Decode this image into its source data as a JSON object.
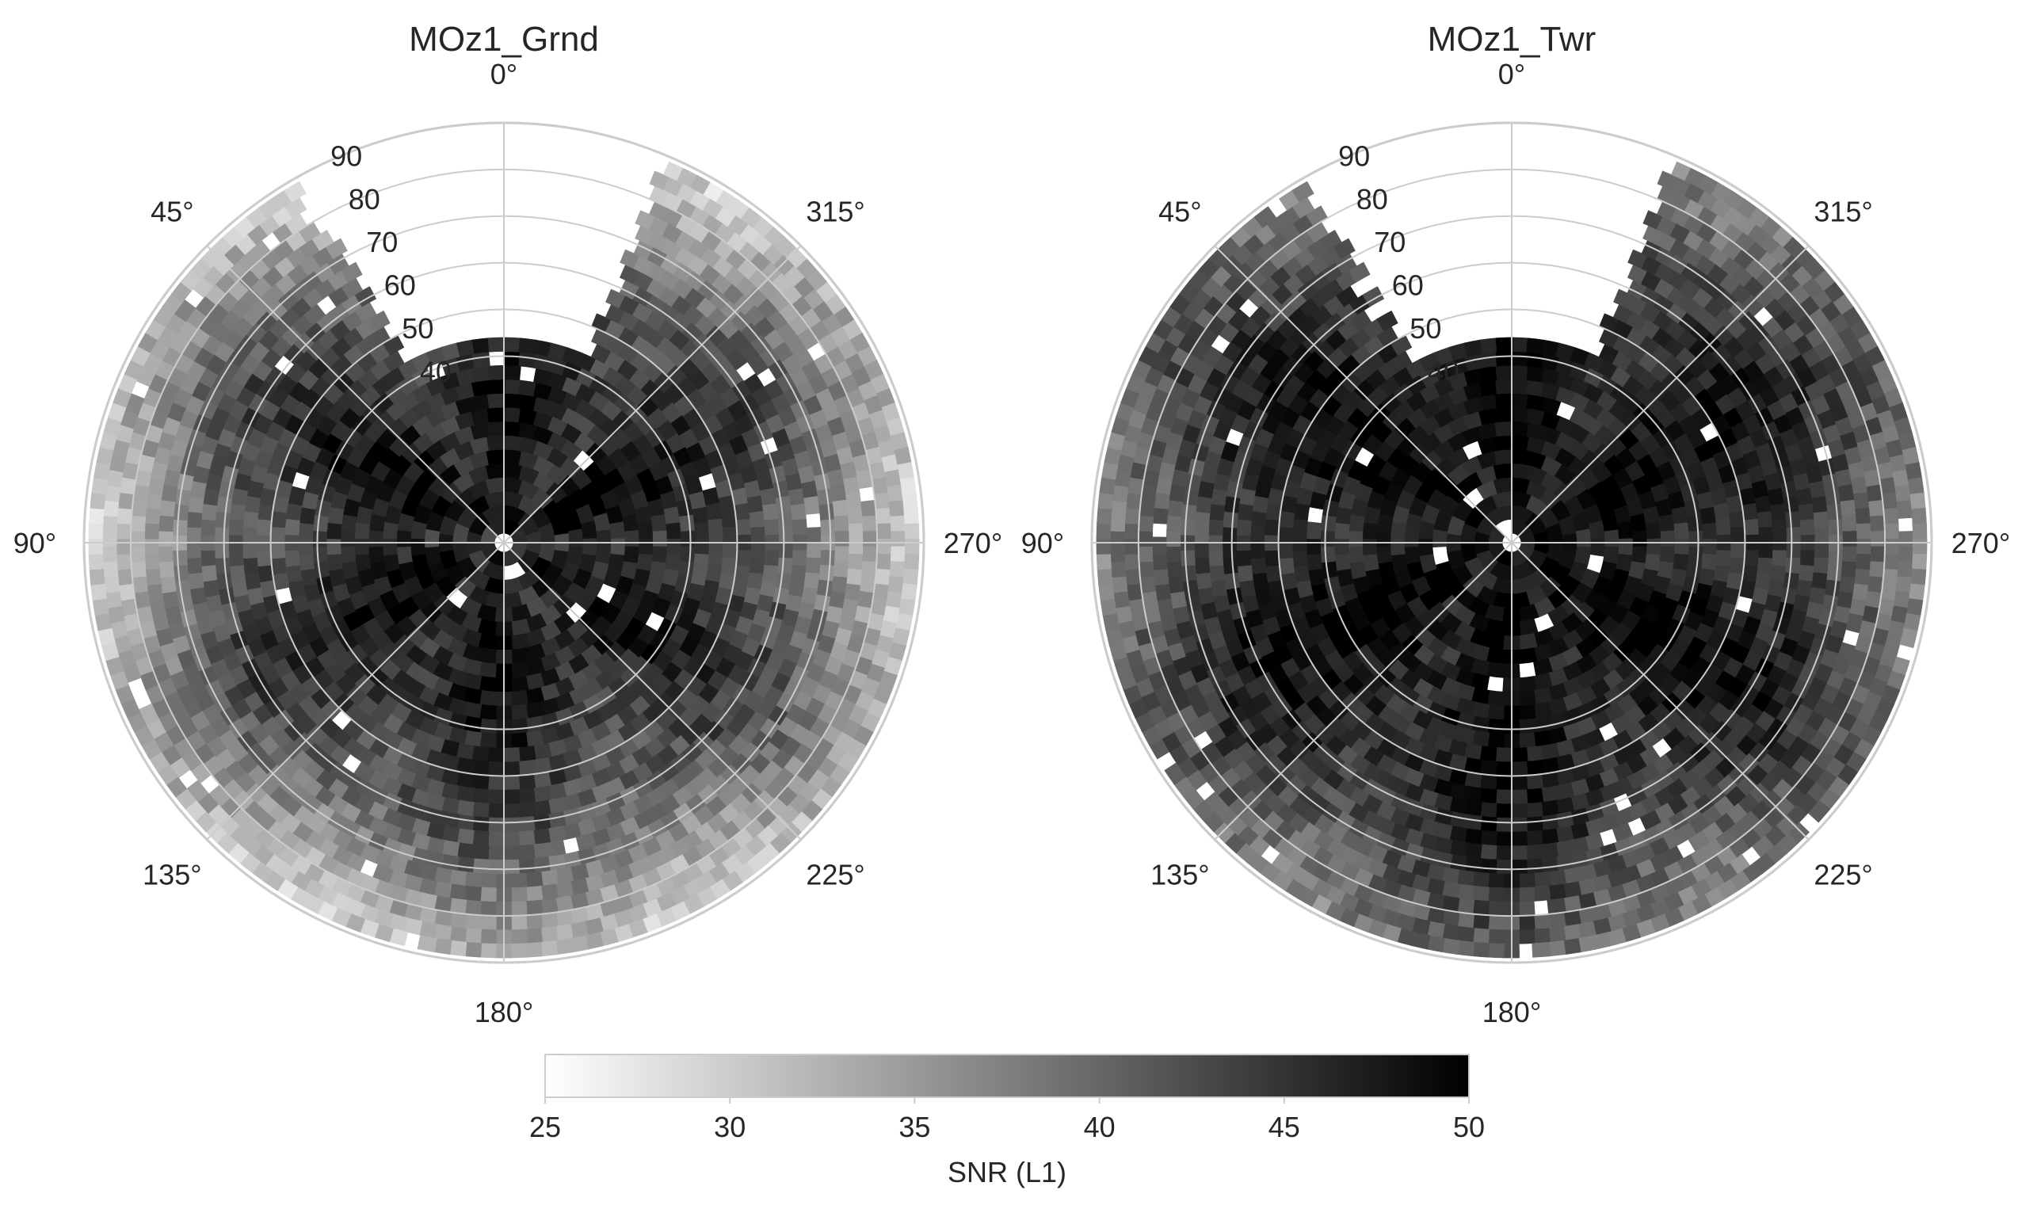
{
  "chart_data": [
    {
      "type": "heatmap",
      "projection": "polar",
      "title": "MOz1_Grnd",
      "theta_direction": "clockwise",
      "theta_zero": "top",
      "theta_ticks": [
        0,
        45,
        90,
        135,
        180,
        225,
        270,
        315
      ],
      "theta_tick_labels": [
        "0°",
        "315°",
        "270°",
        "225°",
        "180°",
        "135°",
        "90°",
        "45°"
      ],
      "r_ticks": [
        40,
        50,
        60,
        70,
        80,
        90
      ],
      "r_tick_labels": [
        "40",
        "50",
        "60",
        "70",
        "80",
        "90"
      ],
      "rlim": [
        0,
        90
      ],
      "grid": true,
      "data_description": "SNR (L1) binned by azimuth and elevation; strong (dark, ~45-50) near zenith, weak (light, ~27-32) at low elevation; northern sector 350-30 degrees has no data beyond elevation 40",
      "values": {
        "inner_elev_r_0_30": 47,
        "mid_r_30_60": 42,
        "outer_r_60_90": 30
      },
      "missing_sector_deg": [
        -30,
        22
      ],
      "missing_sector_rmin": 41,
      "colormap": "gray_r",
      "vmin": 25,
      "vmax": 50
    },
    {
      "type": "heatmap",
      "projection": "polar",
      "title": "MOz1_Twr",
      "theta_direction": "clockwise",
      "theta_zero": "top",
      "theta_ticks": [
        0,
        45,
        90,
        135,
        180,
        225,
        270,
        315
      ],
      "theta_tick_labels": [
        "0°",
        "315°",
        "270°",
        "225°",
        "180°",
        "135°",
        "90°",
        "45°"
      ],
      "r_ticks": [
        40,
        50,
        60,
        70,
        80,
        90
      ],
      "r_tick_labels": [
        "40",
        "50",
        "60",
        "70",
        "80",
        "90"
      ],
      "rlim": [
        0,
        90
      ],
      "grid": true,
      "data_description": "SNR (L1) binned by azimuth and elevation; stronger overall than ground antenna, dark near zenith, medium gray at low elevation",
      "values": {
        "inner_elev_r_0_30": 48,
        "mid_r_30_60": 46,
        "outer_r_60_90": 38
      },
      "missing_sector_deg": [
        -30,
        22
      ],
      "missing_sector_rmin": 41,
      "colormap": "gray_r",
      "vmin": 25,
      "vmax": 50
    }
  ],
  "colorbar": {
    "label": "SNR (L1)",
    "ticks": [
      25,
      30,
      35,
      40,
      45,
      50
    ],
    "tick_labels": [
      "25",
      "30",
      "35",
      "40",
      "45",
      "50"
    ],
    "vmin": 25,
    "vmax": 50,
    "orientation": "horizontal",
    "colormap": "gray_r"
  },
  "colors": {
    "grid": "#cccccc",
    "text": "#262626",
    "low": "#ffffff",
    "high": "#000000"
  }
}
